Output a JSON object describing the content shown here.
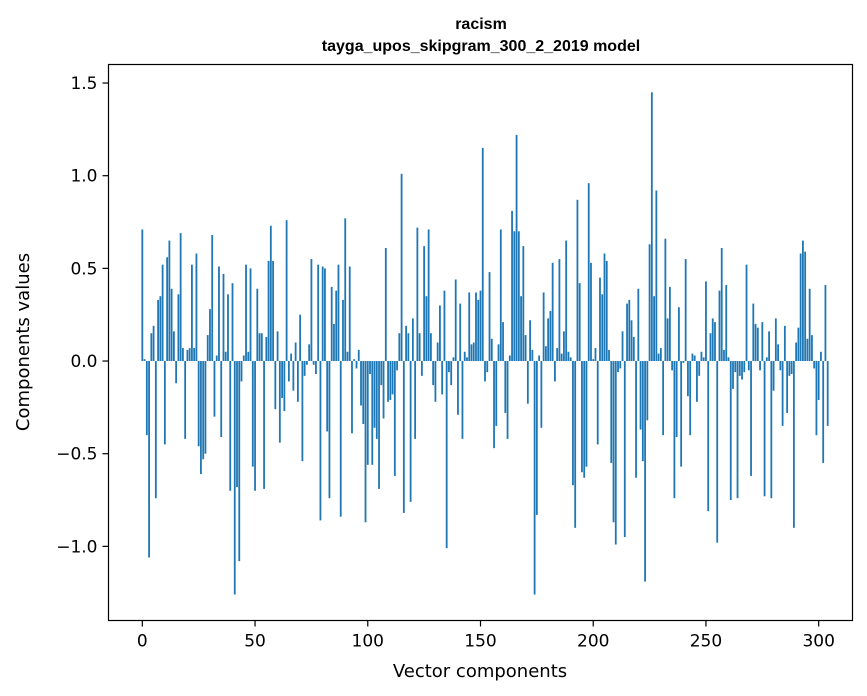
{
  "chart_data": {
    "type": "bar",
    "title": "racism",
    "subtitle": "tayga_upos_skipgram_300_2_2019 model",
    "xlabel": "Vector components",
    "ylabel": "Components values",
    "xlim": [
      -15,
      315
    ],
    "ylim": [
      -1.4,
      1.6
    ],
    "xticks": [
      0,
      50,
      100,
      150,
      200,
      250,
      300
    ],
    "yticks": [
      -1.0,
      -0.5,
      0.0,
      0.5,
      1.0,
      1.5
    ],
    "xtick_labels": [
      "0",
      "50",
      "100",
      "150",
      "200",
      "250",
      "300"
    ],
    "ytick_labels": [
      "−1.0",
      "−0.5",
      "0.0",
      "0.5",
      "1.0",
      "1.5"
    ],
    "grid": false,
    "bar_color": "#1f77b4",
    "values": [
      0.71,
      0.01,
      -0.4,
      -1.06,
      0.15,
      0.19,
      -0.74,
      0.33,
      0.35,
      0.52,
      -0.45,
      0.56,
      0.65,
      0.39,
      0.16,
      -0.12,
      0.36,
      0.69,
      0.07,
      -0.42,
      0.06,
      0.07,
      0.52,
      0.07,
      0.58,
      -0.46,
      -0.61,
      -0.53,
      -0.5,
      0.14,
      0.28,
      0.68,
      -0.3,
      0.03,
      0.51,
      -0.41,
      0.47,
      0.05,
      0.36,
      -0.7,
      0.42,
      -1.26,
      -0.68,
      -1.08,
      -0.11,
      0.03,
      0.52,
      0.05,
      0.5,
      -0.57,
      -0.7,
      0.39,
      0.15,
      0.15,
      -0.69,
      0.13,
      0.54,
      0.73,
      0.54,
      -0.26,
      0.16,
      -0.44,
      -0.2,
      -0.27,
      0.76,
      -0.11,
      0.04,
      -0.16,
      0.1,
      -0.22,
      0.25,
      -0.54,
      -0.08,
      -0.02,
      0.09,
      0.55,
      -0.02,
      -0.07,
      0.52,
      -0.86,
      0.51,
      0.5,
      -0.38,
      -0.74,
      0.4,
      0.2,
      0.38,
      0.52,
      -0.84,
      0.33,
      0.77,
      0.05,
      0.51,
      -0.39,
      0.01,
      -0.04,
      0.06,
      -0.24,
      -0.34,
      -0.87,
      -0.56,
      -0.07,
      -0.56,
      -0.36,
      -0.42,
      -0.69,
      -0.13,
      -0.31,
      0.61,
      -0.22,
      -0.21,
      -0.18,
      -0.62,
      -0.05,
      0.15,
      1.01,
      -0.82,
      0.19,
      0.15,
      -0.76,
      0.23,
      -0.42,
      0.72,
      0.15,
      -0.08,
      0.62,
      0.35,
      0.71,
      0.15,
      -0.13,
      -0.22,
      0.1,
      0.3,
      -0.18,
      0.38,
      -1.01,
      -0.06,
      -0.13,
      0.02,
      0.44,
      -0.29,
      0.31,
      -0.42,
      0.05,
      0.02,
      0.37,
      0.09,
      0.1,
      0.37,
      0.33,
      0.38,
      1.15,
      -0.11,
      -0.06,
      0.48,
      0.12,
      -0.47,
      -0.35,
      0.09,
      0.71,
      0.21,
      -0.28,
      -0.42,
      0.03,
      0.81,
      0.7,
      1.22,
      0.7,
      0.35,
      0.62,
      0.14,
      -0.23,
      0.22,
      0.06,
      -1.26,
      -0.83,
      0.03,
      -0.36,
      0.37,
      0.08,
      0.23,
      0.27,
      0.53,
      -0.11,
      0.07,
      0.55,
      0.04,
      0.16,
      0.65,
      0.05,
      0.02,
      -0.67,
      -0.9,
      0.87,
      0.42,
      -0.6,
      -0.63,
      -0.57,
      0.96,
      0.53,
      0.01,
      0.07,
      -0.45,
      0.45,
      0.36,
      0.58,
      0.54,
      0.06,
      -0.55,
      -0.87,
      -0.99,
      -0.06,
      -0.04,
      0.16,
      -0.95,
      0.31,
      0.33,
      0.22,
      0.13,
      -0.63,
      0.39,
      -0.37,
      -0.54,
      -1.19,
      -0.32,
      0.63,
      1.45,
      0.35,
      0.92,
      0.04,
      0.07,
      -0.4,
      0.66,
      0.23,
      0.4,
      -0.05,
      -0.74,
      -0.41,
      0.29,
      -0.57,
      -0.01,
      0.55,
      -0.19,
      -0.4,
      0.04,
      0.03,
      -0.22,
      -0.08,
      0.05,
      0.02,
      0.43,
      -0.81,
      0.15,
      0.23,
      0.21,
      -0.98,
      0.38,
      0.61,
      0.06,
      0.41,
      0.02,
      -0.75,
      -0.15,
      -0.06,
      -0.74,
      -0.08,
      -0.1,
      -0.06,
      0.52,
      -0.05,
      -0.62,
      0.31,
      0.2,
      0.18,
      -0.05,
      0.21,
      -0.73,
      0.02,
      0.16,
      -0.74,
      -0.16,
      0.23,
      0.09,
      -0.05,
      -0.35,
      0.19,
      -0.28,
      -0.08,
      -0.07,
      -0.9,
      0.1,
      0.18,
      0.58,
      0.65,
      0.59,
      0.12,
      0.39,
      0.14,
      -0.04,
      -0.4,
      -0.21,
      0.05,
      -0.55,
      0.41,
      -0.35
    ]
  }
}
